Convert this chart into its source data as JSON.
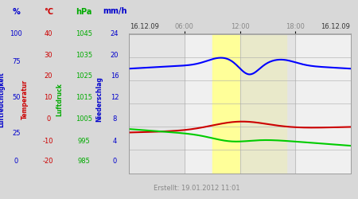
{
  "title_left": "16.12.09",
  "title_right": "16.12.09",
  "created": "Erstellt: 19.01.2012 11:01",
  "bg_color": "#d8d8d8",
  "plot_bg": "#f0f0f0",
  "yellow_start": 9,
  "yellow_end": 17,
  "blue_line_color": "#0000ff",
  "green_line_color": "#00cc00",
  "red_line_color": "#cc0000",
  "line_width": 1.5,
  "grid_color": "#aaaaaa",
  "tick_label_color": "#888888",
  "pct_header": "%",
  "celsius_header": "°C",
  "hpa_header": "hPa",
  "mmh_header": "mm/h",
  "pct_vals": [
    100,
    75,
    50,
    25,
    0
  ],
  "temp_vals": [
    40,
    30,
    20,
    10,
    0,
    -10,
    -20
  ],
  "pres_vals": [
    1045,
    1035,
    1025,
    1015,
    1005,
    995,
    985
  ],
  "mmh_vals": [
    24,
    20,
    16,
    12,
    8,
    4,
    0
  ],
  "label_luftfeuchtigkeit": "Luftfeuchtigkeit",
  "label_temperatur": "Temperatur",
  "label_luftdruck": "Luftdruck",
  "label_niederschlag": "Niederschlag",
  "color_blue": "#0000cc",
  "color_red": "#cc0000",
  "color_green": "#00aa00",
  "hum_base": 75,
  "pres_base": 1004,
  "temp_base": -2.5,
  "xlim": [
    0,
    24
  ],
  "ylim": [
    0,
    100
  ],
  "pres_min": 985,
  "pres_max": 1045,
  "temp_min": -20,
  "temp_max": 40
}
